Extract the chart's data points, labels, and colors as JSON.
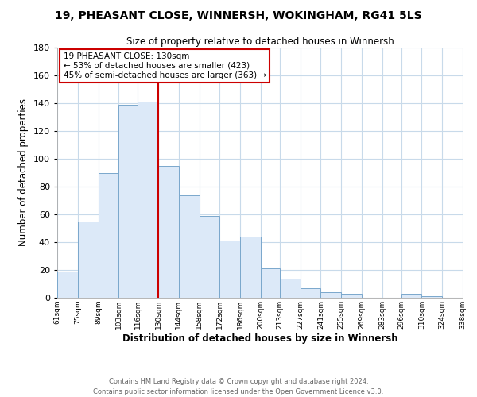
{
  "title": "19, PHEASANT CLOSE, WINNERSH, WOKINGHAM, RG41 5LS",
  "subtitle": "Size of property relative to detached houses in Winnersh",
  "xlabel": "Distribution of detached houses by size in Winnersh",
  "ylabel": "Number of detached properties",
  "bin_edges": [
    61,
    75,
    89,
    103,
    116,
    130,
    144,
    158,
    172,
    186,
    200,
    213,
    227,
    241,
    255,
    269,
    283,
    296,
    310,
    324,
    338
  ],
  "bin_labels": [
    "61sqm",
    "75sqm",
    "89sqm",
    "103sqm",
    "116sqm",
    "130sqm",
    "144sqm",
    "158sqm",
    "172sqm",
    "186sqm",
    "200sqm",
    "213sqm",
    "227sqm",
    "241sqm",
    "255sqm",
    "269sqm",
    "283sqm",
    "296sqm",
    "310sqm",
    "324sqm",
    "338sqm"
  ],
  "bar_heights": [
    19,
    55,
    90,
    139,
    141,
    95,
    74,
    59,
    41,
    44,
    21,
    14,
    7,
    4,
    3,
    0,
    0,
    3,
    1,
    0
  ],
  "bar_color": "#dce9f8",
  "bar_edge_color": "#7aa7cc",
  "property_line_x": 130,
  "property_line_color": "#cc0000",
  "ylim": [
    0,
    180
  ],
  "yticks": [
    0,
    20,
    40,
    60,
    80,
    100,
    120,
    140,
    160,
    180
  ],
  "annotation_box_text": "19 PHEASANT CLOSE: 130sqm\n← 53% of detached houses are smaller (423)\n45% of semi-detached houses are larger (363) →",
  "annotation_box_color": "#ffffff",
  "annotation_box_edge_color": "#cc0000",
  "footer_line1": "Contains HM Land Registry data © Crown copyright and database right 2024.",
  "footer_line2": "Contains public sector information licensed under the Open Government Licence v3.0.",
  "background_color": "#ffffff",
  "grid_color": "#c8daea"
}
